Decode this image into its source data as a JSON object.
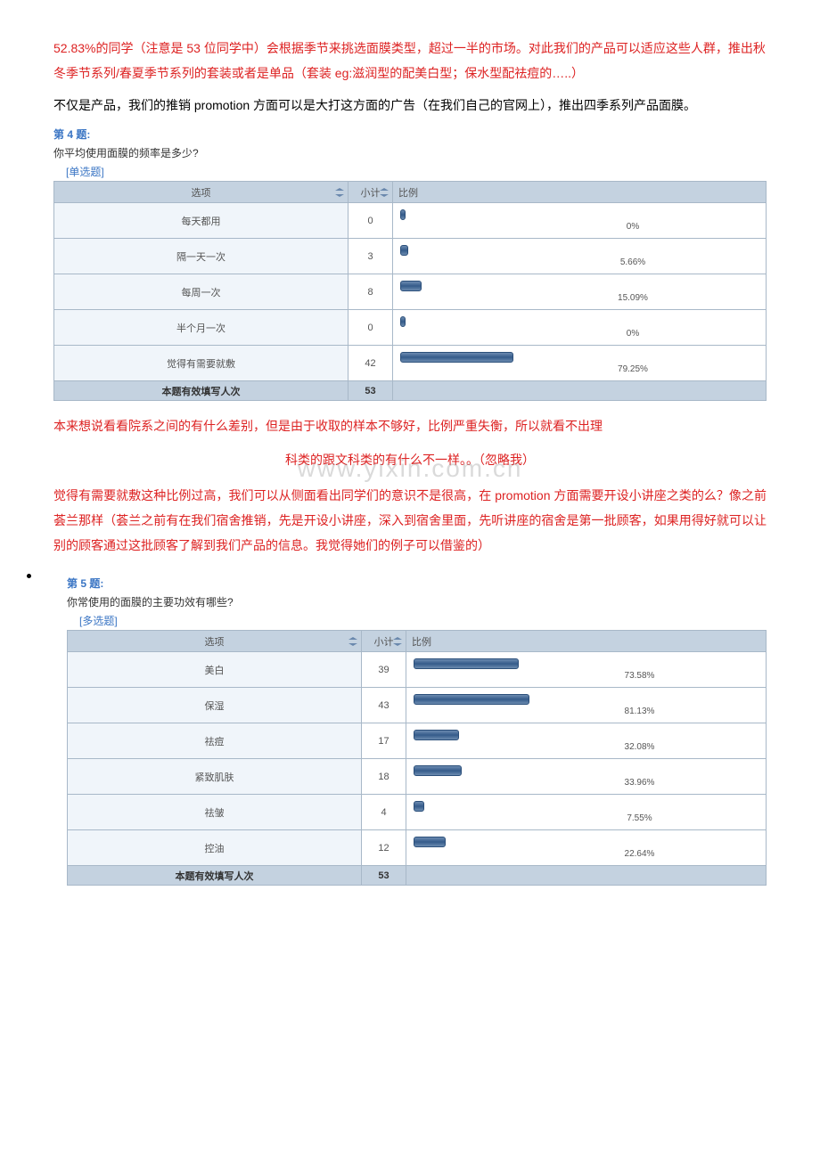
{
  "intro_paragraphs": [
    {
      "style": "red",
      "text": " 52.83%的同学（注意是 53 位同学中）会根据季节来挑选面膜类型，超过一半的市场。对此我们的产品可以适应这些人群，推出秋冬季节系列/春夏季节系列的套装或者是单品（套装 eg:滋润型的配美白型；保水型配祛痘的…..）"
    },
    {
      "style": "black",
      "text": "不仅是产品，我们的推销 promotion 方面可以是大打这方面的广告（在我们自己的官网上），推出四季系列产品面膜。"
    }
  ],
  "q4": {
    "header": "第 4 题:",
    "question": "你平均使用面膜的频率是多少?",
    "type": "[单选题]",
    "columns": [
      "选项",
      "小计",
      "比例"
    ],
    "rows": [
      {
        "label": "每天都用",
        "count": 0,
        "pct": 0,
        "pct_label": "0%"
      },
      {
        "label": "隔一天一次",
        "count": 3,
        "pct": 5.66,
        "pct_label": "5.66%"
      },
      {
        "label": "每周一次",
        "count": 8,
        "pct": 15.09,
        "pct_label": "15.09%"
      },
      {
        "label": "半个月一次",
        "count": 0,
        "pct": 0,
        "pct_label": "0%"
      },
      {
        "label": "觉得有需要就敷",
        "count": 42,
        "pct": 79.25,
        "pct_label": "79.25%"
      }
    ],
    "summary_label": "本题有效填写人次",
    "summary_count": 53,
    "bar_max_width": 160,
    "bar_color": "#4a6f9b",
    "header_bg": "#c4d2e0",
    "analysis": [
      {
        "align": "left",
        "text": "本来想说看看院系之间的有什么差别，但是由于收取的样本不够好，比例严重失衡，所以就看不出理"
      },
      {
        "align": "center",
        "text": "科类的跟文科类的有什么不一样。。（忽略我）"
      }
    ],
    "analysis2": "觉得有需要就敷这种比例过高，我们可以从侧面看出同学们的意识不是很高，在 promotion 方面需要开设小讲座之类的么？像之前荟兰那样（荟兰之前有在我们宿舍推销，先是开设小讲座，深入到宿舍里面，先听讲座的宿舍是第一批顾客，如果用得好就可以让别的顾客通过这批顾客了解到我们产品的信息。我觉得她们的例子可以借鉴的）",
    "analysis2_align": "center_last"
  },
  "watermark": "www.yixin.com.cn",
  "q5": {
    "header": "第 5 题:",
    "question": "你常使用的面膜的主要功效有哪些?",
    "type": "[多选题]",
    "columns": [
      "选项",
      "小计",
      "比例"
    ],
    "rows": [
      {
        "label": "美白",
        "count": 39,
        "pct": 73.58,
        "pct_label": "73.58%"
      },
      {
        "label": "保湿",
        "count": 43,
        "pct": 81.13,
        "pct_label": "81.13%"
      },
      {
        "label": "祛痘",
        "count": 17,
        "pct": 32.08,
        "pct_label": "32.08%"
      },
      {
        "label": "紧致肌肤",
        "count": 18,
        "pct": 33.96,
        "pct_label": "33.96%"
      },
      {
        "label": "祛皱",
        "count": 4,
        "pct": 7.55,
        "pct_label": "7.55%"
      },
      {
        "label": "控油",
        "count": 12,
        "pct": 22.64,
        "pct_label": "22.64%"
      }
    ],
    "summary_label": "本题有效填写人次",
    "summary_count": 53,
    "bar_max_width": 160
  }
}
